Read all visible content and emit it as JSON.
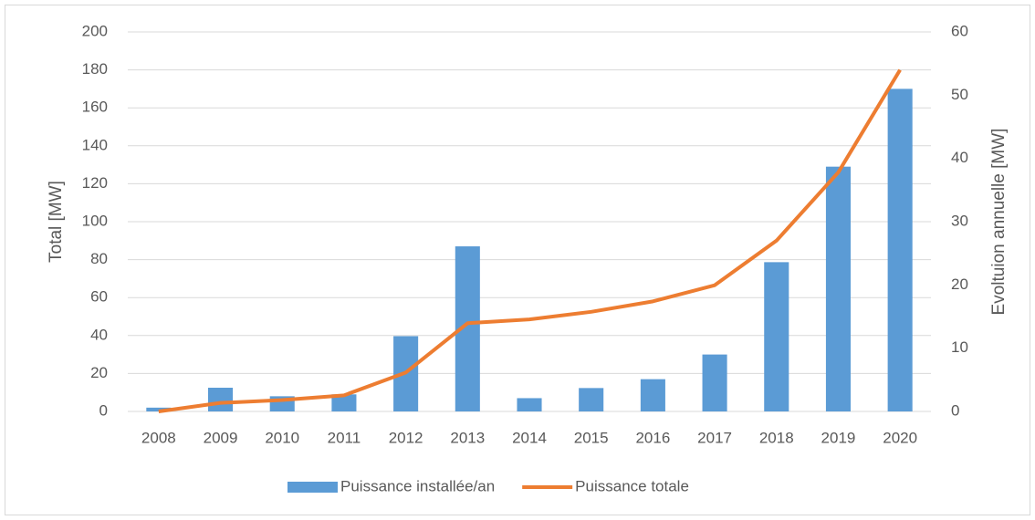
{
  "chart_data": {
    "type": "bar_line",
    "categories": [
      "2008",
      "2009",
      "2010",
      "2011",
      "2012",
      "2013",
      "2014",
      "2015",
      "2016",
      "2017",
      "2018",
      "2019",
      "2020"
    ],
    "ylabel": "Total [MW]",
    "y2label": "Evoltuion annuelle [MW]",
    "ylim": [
      0,
      200
    ],
    "yticks": [
      0,
      20,
      40,
      60,
      80,
      100,
      120,
      140,
      160,
      180,
      200
    ],
    "y2lim": [
      0,
      60
    ],
    "y2ticks": [
      0,
      10,
      20,
      30,
      40,
      50,
      60
    ],
    "grid": true,
    "legend": "bottom",
    "series": [
      {
        "name": "Puissance installée/an",
        "type": "bar",
        "axis": "y2",
        "color": "#5b9bd5",
        "values": [
          0.6,
          3.75,
          2.4,
          2.7,
          11.9,
          26.1,
          2.1,
          3.7,
          5.1,
          9,
          23.6,
          38.7,
          51
        ]
      },
      {
        "name": "Puissance totale",
        "type": "line",
        "axis": "y",
        "color": "#ed7d31",
        "values": [
          0,
          4.5,
          6,
          8.5,
          20.5,
          46.5,
          48.5,
          52.5,
          58,
          66.5,
          90,
          126,
          180
        ]
      }
    ]
  }
}
